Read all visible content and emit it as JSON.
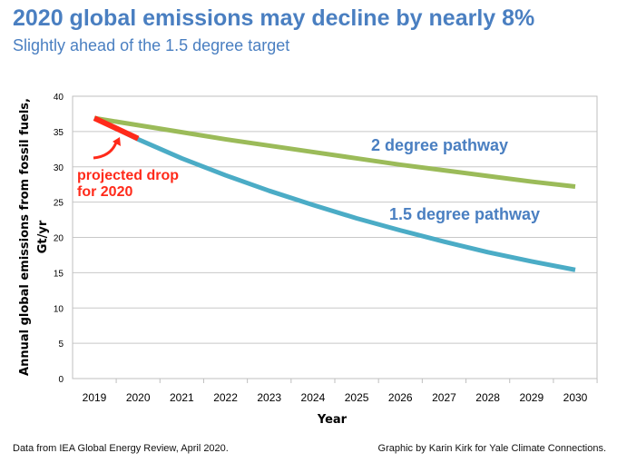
{
  "title": "2020 global emissions may decline by nearly 8%",
  "subtitle": "Slightly ahead of the 1.5 degree target",
  "footer": {
    "source": "Data from IEA Global Energy Review, April 2020.",
    "credit": "Graphic by Karin Kirk for Yale Climate Connections."
  },
  "chart_data": {
    "type": "line",
    "xlabel": "Year",
    "ylabel_line1": "Annual global emissions from fossil fuels,",
    "ylabel_line2": "Gt/yr",
    "xlim": [
      2019,
      2030
    ],
    "ylim": [
      0,
      40
    ],
    "yticks": [
      0,
      5,
      10,
      15,
      20,
      25,
      30,
      35,
      40
    ],
    "xticks": [
      2019,
      2020,
      2021,
      2022,
      2023,
      2024,
      2025,
      2026,
      2027,
      2028,
      2029,
      2030
    ],
    "grid": true,
    "series": [
      {
        "name": "2 degree pathway",
        "color": "#9bbb59",
        "x": [
          2019,
          2020,
          2021,
          2022,
          2023,
          2024,
          2025,
          2026,
          2027,
          2028,
          2029,
          2030
        ],
        "values": [
          36.9,
          35.9,
          34.9,
          33.9,
          33.0,
          32.1,
          31.2,
          30.3,
          29.5,
          28.7,
          27.9,
          27.2
        ]
      },
      {
        "name": "1.5 degree pathway",
        "color": "#4bacc6",
        "x": [
          2019,
          2020,
          2021,
          2022,
          2023,
          2024,
          2025,
          2026,
          2027,
          2028,
          2029,
          2030
        ],
        "values": [
          36.9,
          33.9,
          31.2,
          28.8,
          26.6,
          24.6,
          22.7,
          21.0,
          19.4,
          17.9,
          16.6,
          15.4
        ]
      },
      {
        "name": "projected drop for 2020",
        "color": "#ff2a1a",
        "x": [
          2019,
          2020
        ],
        "values": [
          36.9,
          34.0
        ]
      }
    ],
    "annotations": {
      "two_degree": "2 degree pathway",
      "one_five_degree": "1.5 degree pathway",
      "drop_line1": "projected drop",
      "drop_line2": "for 2020"
    }
  }
}
